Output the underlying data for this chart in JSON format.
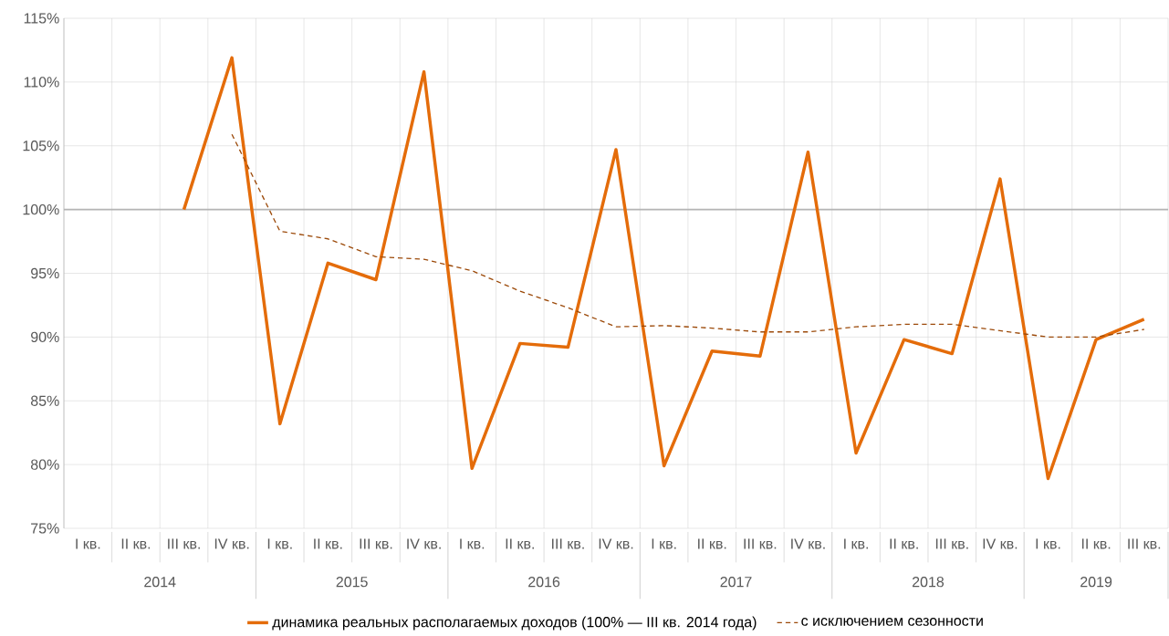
{
  "chart_data": {
    "type": "line",
    "categories": [
      "I кв.",
      "II кв.",
      "III кв.",
      "IV кв.",
      "I кв.",
      "II кв.",
      "III кв.",
      "IV кв.",
      "I кв.",
      "II кв.",
      "III кв.",
      "IV кв.",
      "I кв.",
      "II кв.",
      "III кв.",
      "IV кв.",
      "I кв.",
      "II кв.",
      "III кв.",
      "IV кв.",
      "I кв.",
      "II кв.",
      "III кв."
    ],
    "series": [
      {
        "name": "динамика реальных располагаемых доходов (100% — III кв. 2014 года)",
        "color": "#e46c0a",
        "line_style": "solid",
        "values": [
          null,
          null,
          100,
          111.9,
          83.2,
          95.8,
          94.5,
          110.8,
          79.7,
          89.5,
          89.2,
          104.7,
          79.9,
          88.9,
          88.5,
          104.5,
          80.9,
          89.8,
          88.7,
          102.4,
          78.9,
          89.8,
          91.4
        ]
      },
      {
        "name": "с исключением сезонности",
        "color": "#9c4a0a",
        "line_style": "dashed",
        "values": [
          null,
          null,
          null,
          105.9,
          98.3,
          97.7,
          96.3,
          96.1,
          95.2,
          93.6,
          92.3,
          90.8,
          90.9,
          90.7,
          90.4,
          90.4,
          90.8,
          91.0,
          91.0,
          90.5,
          90.0,
          90.0,
          90.6
        ]
      }
    ],
    "ylim": [
      75,
      115
    ],
    "yticks": [
      {
        "value": 75,
        "label": "75%"
      },
      {
        "value": 80,
        "label": "80%"
      },
      {
        "value": 85,
        "label": "85%"
      },
      {
        "value": 90,
        "label": "90%"
      },
      {
        "value": 95,
        "label": "95%"
      },
      {
        "value": 100,
        "label": "100%"
      },
      {
        "value": 105,
        "label": "105%"
      },
      {
        "value": 110,
        "label": "110%"
      },
      {
        "value": 115,
        "label": "115%"
      }
    ],
    "ref_lines": [
      {
        "axis": "y",
        "value": 100,
        "color": "#b4b4b4"
      }
    ],
    "grid": true,
    "legend": "bottom",
    "marker": "none",
    "annotations": [
      "2014",
      "2015",
      "2016",
      "2017",
      "2018",
      "2019"
    ]
  }
}
